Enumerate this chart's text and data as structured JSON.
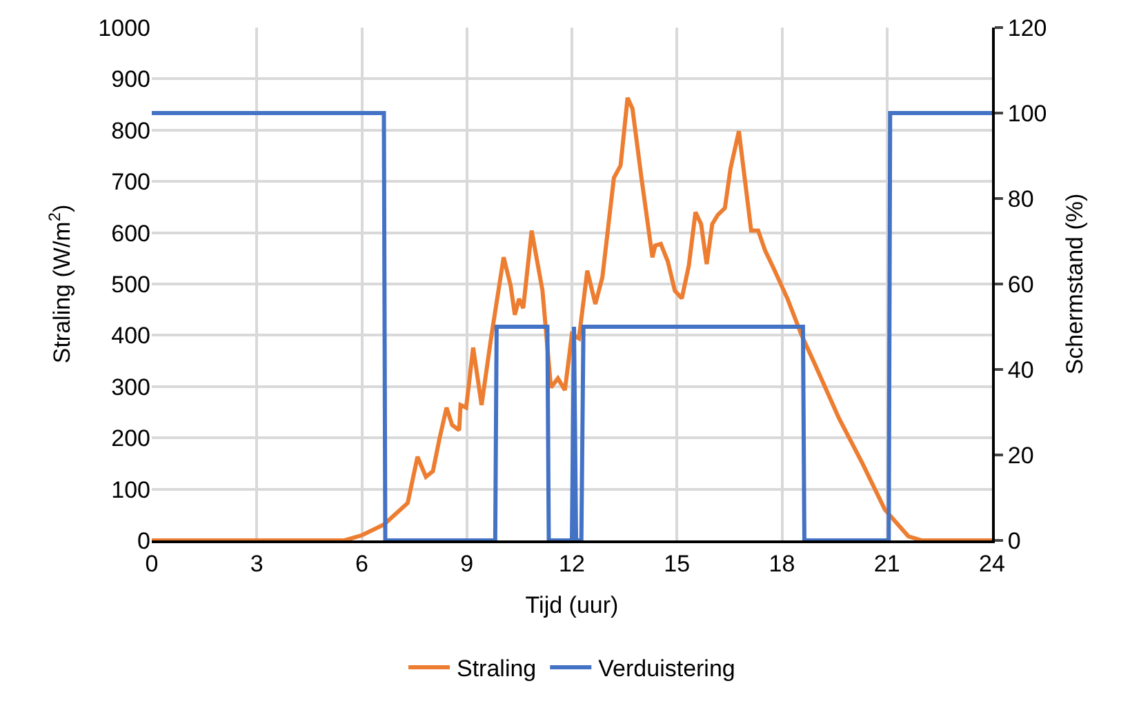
{
  "chart_data": {
    "type": "line",
    "xlabel": "Tijd (uur)",
    "ylabel": "Straling (W/m$^{2}$)",
    "y2label": "Schermstand (%)",
    "xlim": [
      0,
      24
    ],
    "xticks": [
      0,
      3,
      6,
      9,
      12,
      15,
      18,
      21,
      24
    ],
    "ylim": [
      0,
      1000
    ],
    "yticks": [
      0,
      100,
      200,
      300,
      400,
      500,
      600,
      700,
      800,
      900,
      1000
    ],
    "y2lim": [
      0,
      120
    ],
    "y2ticks": [
      0,
      20,
      40,
      60,
      80,
      100,
      120
    ],
    "grid": true,
    "legend": "bottom",
    "marker": "none",
    "line_style": "solid",
    "series": [
      {
        "name": "Straling",
        "color": "#ed7d31",
        "x": [
          0,
          5.5,
          6.0,
          6.63,
          7.31,
          7.59,
          7.83,
          8.03,
          8.22,
          8.42,
          8.58,
          8.78,
          8.82,
          8.98,
          9.18,
          9.42,
          9.69,
          10.05,
          10.25,
          10.37,
          10.49,
          10.61,
          10.85,
          11.16,
          11.4,
          11.6,
          11.8,
          12.0,
          12.2,
          12.44,
          12.67,
          12.87,
          13.2,
          13.39,
          13.59,
          13.73,
          13.99,
          14.3,
          14.38,
          14.54,
          14.74,
          14.94,
          15.14,
          15.34,
          15.53,
          15.69,
          15.85,
          16.01,
          16.17,
          16.37,
          16.53,
          16.77,
          17.12,
          17.32,
          17.52,
          17.76,
          18.16,
          18.55,
          18.95,
          19.63,
          20.3,
          20.94,
          21.61,
          22.0,
          24
        ],
        "values": [
          0,
          0,
          10,
          31,
          73,
          163,
          124,
          135,
          199,
          259,
          225,
          215,
          264,
          259,
          376,
          264,
          394,
          552,
          497,
          440,
          471,
          453,
          604,
          487,
          298,
          316,
          293,
          402,
          394,
          526,
          461,
          513,
          707,
          731,
          863,
          842,
          705,
          552,
          575,
          578,
          544,
          487,
          472,
          536,
          640,
          617,
          539,
          617,
          635,
          648,
          725,
          798,
          604,
          604,
          565,
          531,
          471,
          402,
          342,
          238,
          150,
          60,
          8,
          0,
          0
        ]
      },
      {
        "name": "Verduistering",
        "color": "#4472c4",
        "axis": "y2",
        "x": [
          0,
          6.63,
          6.67,
          9.81,
          9.85,
          11.3,
          11.34,
          12.0,
          12.06,
          12.12,
          12.27,
          12.33,
          18.6,
          18.64,
          21.05,
          21.09,
          24
        ],
        "values": [
          100,
          100,
          0,
          0,
          50,
          50,
          0,
          0,
          50,
          0,
          0,
          50,
          50,
          0,
          0,
          100,
          100
        ]
      }
    ]
  }
}
